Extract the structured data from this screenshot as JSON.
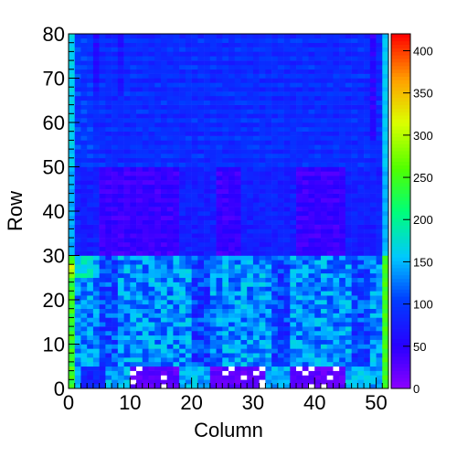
{
  "chart_data": {
    "type": "heatmap",
    "xlabel": "Column",
    "ylabel": "Row",
    "xlim": [
      0,
      52
    ],
    "ylim": [
      0,
      80
    ],
    "zlim": [
      0,
      420
    ],
    "x_ticks": [
      0,
      10,
      20,
      30,
      40,
      50
    ],
    "y_ticks": [
      0,
      10,
      20,
      30,
      40,
      50,
      60,
      70,
      80
    ],
    "z_ticks": [
      0,
      50,
      100,
      150,
      200,
      250,
      300,
      350,
      400
    ],
    "colormap": "rainbow (purple-blue-cyan-green-yellow-red)",
    "grid": false,
    "colorbar": "right",
    "description_values": "Cell counts per (Column, Row) bin; rows 0-30 mostly ~100-170, rows 30-50 ~40-80 with dark bands at columns 5-17, 24-28, 37-44, rows 50-80 ~70-110; edge columns 0 and 51 ~180-300; rows 0-5 at columns 10-17, 23-31, 36-44 near 0-30 with empty cells",
    "edge_column_values": {
      "column_0": [
        250,
        230,
        260,
        240,
        270,
        230,
        250,
        240,
        260,
        230,
        240,
        260,
        250,
        230,
        240,
        250,
        230,
        260,
        240,
        250,
        260,
        240,
        250,
        230,
        240,
        280,
        300,
        320,
        260,
        240,
        150,
        150,
        140,
        150,
        150,
        150,
        140,
        150,
        140,
        150,
        150,
        140,
        150,
        150,
        140,
        150,
        150,
        150,
        140,
        150,
        170,
        160,
        160,
        150,
        160,
        170,
        160,
        160,
        170,
        160,
        160,
        170,
        160,
        160,
        170,
        160,
        160,
        170,
        160,
        160,
        170,
        160,
        160,
        170,
        160,
        160,
        170,
        160,
        160,
        170
      ],
      "column_51": [
        250,
        240,
        260,
        240,
        250,
        240,
        260,
        250,
        240,
        260,
        250,
        240,
        250,
        260,
        240,
        250,
        260,
        240,
        250,
        240,
        260,
        250,
        240,
        260,
        250,
        240,
        250,
        260,
        240,
        250,
        160,
        150,
        150,
        140,
        150,
        150,
        140,
        150,
        150,
        140,
        150,
        150,
        140,
        150,
        150,
        140,
        150,
        150,
        140,
        150,
        160,
        160,
        150,
        160,
        160,
        150,
        160,
        160,
        150,
        160,
        160,
        150,
        160,
        160,
        150,
        160,
        160,
        150,
        160,
        160,
        150,
        160,
        160,
        150,
        160,
        160,
        150,
        160,
        160,
        150
      ]
    }
  }
}
